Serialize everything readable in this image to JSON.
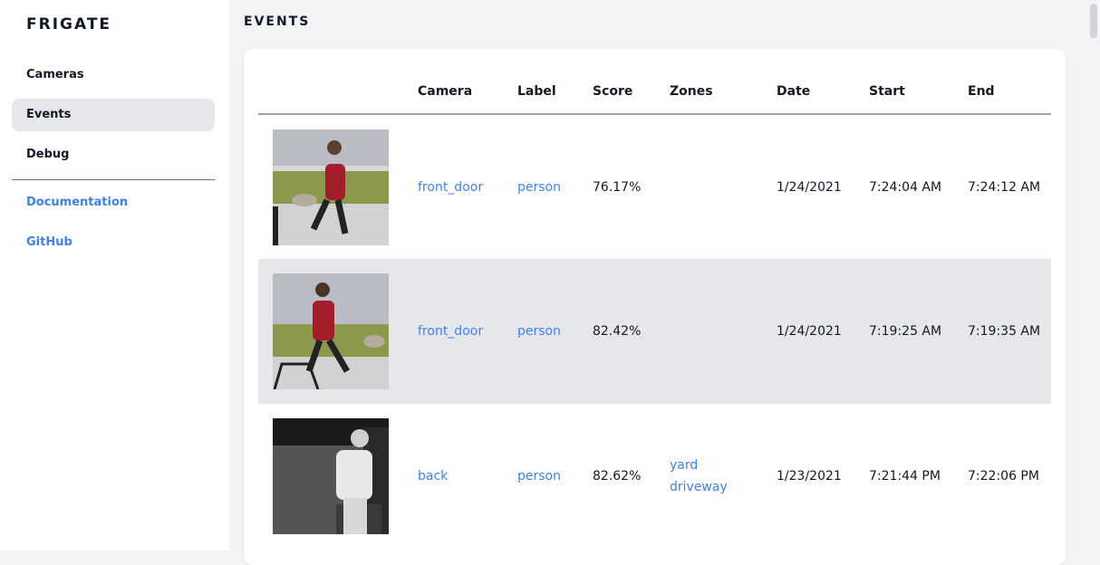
{
  "app": {
    "title": "FRIGATE"
  },
  "sidebar": {
    "items": [
      {
        "label": "Cameras"
      },
      {
        "label": "Events",
        "active": true
      },
      {
        "label": "Debug"
      }
    ],
    "links": [
      {
        "label": "Documentation"
      },
      {
        "label": "GitHub"
      }
    ]
  },
  "page": {
    "title": "EVENTS"
  },
  "table": {
    "headers": [
      "",
      "Camera",
      "Label",
      "Score",
      "Zones",
      "Date",
      "Start",
      "End"
    ],
    "rows": [
      {
        "camera": "front_door",
        "label": "person",
        "score": "76.17%",
        "zones": [
          "",
          ""
        ],
        "date": "1/24/2021",
        "start": "7:24:04 AM",
        "end": "7:24:12 AM"
      },
      {
        "camera": "front_door",
        "label": "person",
        "score": "82.42%",
        "zones": [
          "",
          ""
        ],
        "date": "1/24/2021",
        "start": "7:19:25 AM",
        "end": "7:19:35 AM"
      },
      {
        "camera": "back",
        "label": "person",
        "score": "82.62%",
        "zones": [
          "yard",
          "driveway"
        ],
        "date": "1/23/2021",
        "start": "7:21:44 PM",
        "end": "7:22:06 PM"
      }
    ]
  },
  "colors": {
    "accent": "#3b82f6",
    "active_bg": "#e5e7eb"
  }
}
